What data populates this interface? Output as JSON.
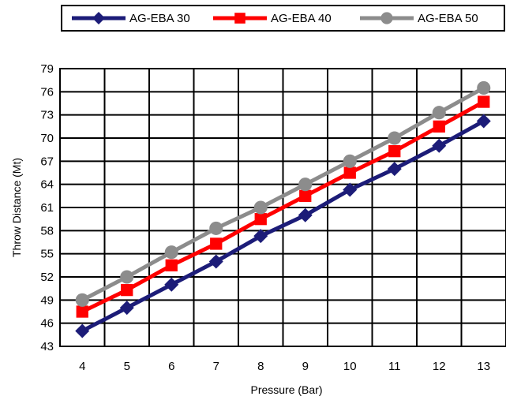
{
  "chart_data": {
    "type": "line",
    "title": "",
    "xlabel": "Pressure (Bar)",
    "ylabel": "Throw Distance (Mt)",
    "x": [
      4,
      5,
      6,
      7,
      8,
      9,
      10,
      11,
      12,
      13
    ],
    "ylim": [
      43,
      79
    ],
    "yticks": [
      43,
      46,
      49,
      52,
      55,
      58,
      61,
      64,
      67,
      70,
      73,
      76,
      79
    ],
    "grid": true,
    "legend_position": "top",
    "series": [
      {
        "name": "AG-EBA 30",
        "color": "#1c1c78",
        "marker": "diamond",
        "values": [
          45.0,
          48.0,
          51.0,
          54.0,
          57.3,
          60.0,
          63.3,
          66.0,
          69.0,
          72.2
        ]
      },
      {
        "name": "AG-EBA 40",
        "color": "#ff0000",
        "marker": "square",
        "values": [
          47.5,
          50.3,
          53.5,
          56.3,
          59.5,
          62.5,
          65.5,
          68.3,
          71.5,
          74.7
        ]
      },
      {
        "name": "AG-EBA 50",
        "color": "#8c8c8c",
        "marker": "circle",
        "values": [
          49.0,
          52.0,
          55.2,
          58.3,
          61.0,
          64.0,
          67.0,
          70.0,
          73.3,
          76.5
        ]
      }
    ]
  }
}
